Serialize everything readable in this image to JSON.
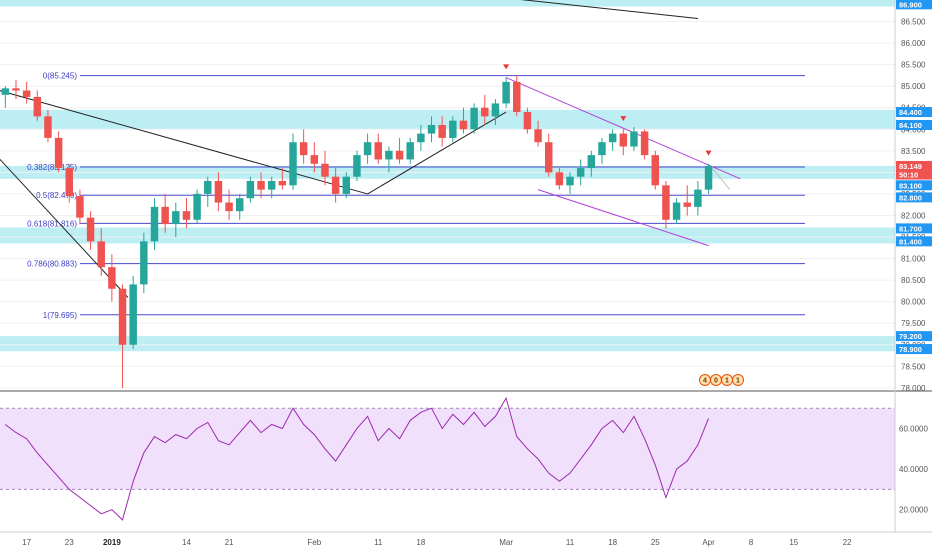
{
  "chart_data": {
    "type": "candlestick",
    "title": "",
    "price_axis": {
      "ticks": [
        "86.500",
        "86.000",
        "85.500",
        "85.000",
        "84.500",
        "84.000",
        "83.500",
        "83.000",
        "82.500",
        "82.000",
        "81.500",
        "81.000",
        "80.500",
        "80.000",
        "79.500",
        "79.000",
        "78.500",
        "78.000"
      ],
      "tick_values": [
        86.5,
        86.0,
        85.5,
        85.0,
        84.5,
        84.0,
        83.5,
        83.0,
        82.5,
        82.0,
        81.5,
        81.0,
        80.5,
        80.0,
        79.5,
        79.0,
        78.5,
        78.0
      ],
      "range": [
        77.95,
        87.0
      ],
      "tags": [
        {
          "label": "86.900",
          "value": 86.9,
          "color": "#2196f3"
        },
        {
          "label": "84.400",
          "value": 84.4,
          "color": "#2196f3"
        },
        {
          "label": "84.100",
          "value": 84.1,
          "color": "#2196f3"
        },
        {
          "label": "83.149",
          "value": 83.149,
          "color": "#ef5350"
        },
        {
          "label": "50:10",
          "value": 82.95,
          "color": "#ef5350"
        },
        {
          "label": "83.100",
          "value": 82.7,
          "color": "#2196f3"
        },
        {
          "label": "82.800",
          "value": 82.42,
          "color": "#2196f3"
        },
        {
          "label": "81.700",
          "value": 81.7,
          "color": "#2196f3"
        },
        {
          "label": "81.400",
          "value": 81.4,
          "color": "#2196f3"
        },
        {
          "label": "79.200",
          "value": 79.2,
          "color": "#2196f3"
        },
        {
          "label": "78.900",
          "value": 78.9,
          "color": "#2196f3"
        }
      ]
    },
    "rsi_axis": {
      "ticks": [
        "60.0000",
        "40.0000",
        "20.0000"
      ],
      "tick_values": [
        60,
        40,
        20
      ],
      "range": [
        10,
        78
      ],
      "band": [
        30,
        70
      ]
    },
    "x_axis": {
      "labels": [
        {
          "text": "17",
          "index": 2,
          "bold": false
        },
        {
          "text": "23",
          "index": 6,
          "bold": false
        },
        {
          "text": "2019",
          "index": 10,
          "bold": true
        },
        {
          "text": "14",
          "index": 17,
          "bold": false
        },
        {
          "text": "21",
          "index": 21,
          "bold": false
        },
        {
          "text": "Feb",
          "index": 29,
          "bold": false
        },
        {
          "text": "11",
          "index": 35,
          "bold": false
        },
        {
          "text": "18",
          "index": 39,
          "bold": false
        },
        {
          "text": "Mar",
          "index": 47,
          "bold": false
        },
        {
          "text": "11",
          "index": 53,
          "bold": false
        },
        {
          "text": "18",
          "index": 57,
          "bold": false
        },
        {
          "text": "25",
          "index": 61,
          "bold": false
        },
        {
          "text": "Apr",
          "index": 66,
          "bold": false
        },
        {
          "text": "8",
          "index": 70,
          "bold": false
        },
        {
          "text": "15",
          "index": 74,
          "bold": false
        },
        {
          "text": "22",
          "index": 79,
          "bold": false
        }
      ],
      "bar_count": 84
    },
    "resistance_zones": [
      {
        "from": 86.85,
        "to": 87.0
      },
      {
        "from": 84.0,
        "to": 84.45
      },
      {
        "from": 82.85,
        "to": 83.15
      },
      {
        "from": 81.35,
        "to": 81.72
      },
      {
        "from": 78.85,
        "to": 79.2
      }
    ],
    "fibonacci": [
      {
        "label": "0(85.245)",
        "value": 85.245
      },
      {
        "label": "0.382(83.125)",
        "value": 83.125
      },
      {
        "label": "0.5(82.470)",
        "value": 82.47
      },
      {
        "label": "0.618(81.816)",
        "value": 81.816
      },
      {
        "label": "0.786(80.883)",
        "value": 80.883
      },
      {
        "label": "1(79.695)",
        "value": 79.695
      }
    ],
    "candles": [
      {
        "o": 84.8,
        "h": 85.0,
        "l": 84.5,
        "c": 84.95
      },
      {
        "o": 84.95,
        "h": 85.15,
        "l": 84.7,
        "c": 84.9
      },
      {
        "o": 84.9,
        "h": 85.1,
        "l": 84.6,
        "c": 84.75
      },
      {
        "o": 84.75,
        "h": 84.9,
        "l": 84.2,
        "c": 84.3
      },
      {
        "o": 84.3,
        "h": 84.45,
        "l": 83.7,
        "c": 83.8
      },
      {
        "o": 83.8,
        "h": 83.95,
        "l": 83.0,
        "c": 83.1
      },
      {
        "o": 83.1,
        "h": 83.2,
        "l": 82.3,
        "c": 82.45
      },
      {
        "o": 82.45,
        "h": 82.6,
        "l": 81.8,
        "c": 81.95
      },
      {
        "o": 81.95,
        "h": 82.1,
        "l": 81.2,
        "c": 81.4
      },
      {
        "o": 81.4,
        "h": 81.7,
        "l": 80.6,
        "c": 80.8
      },
      {
        "o": 80.8,
        "h": 81.1,
        "l": 80.0,
        "c": 80.3
      },
      {
        "o": 80.3,
        "h": 80.4,
        "l": 78.0,
        "c": 79.0
      },
      {
        "o": 79.0,
        "h": 80.6,
        "l": 78.9,
        "c": 80.4
      },
      {
        "o": 80.4,
        "h": 81.6,
        "l": 80.2,
        "c": 81.4
      },
      {
        "o": 81.4,
        "h": 82.4,
        "l": 81.2,
        "c": 82.2
      },
      {
        "o": 82.2,
        "h": 82.5,
        "l": 81.6,
        "c": 81.8
      },
      {
        "o": 81.8,
        "h": 82.3,
        "l": 81.5,
        "c": 82.1
      },
      {
        "o": 82.1,
        "h": 82.4,
        "l": 81.7,
        "c": 81.9
      },
      {
        "o": 81.9,
        "h": 82.6,
        "l": 81.8,
        "c": 82.5
      },
      {
        "o": 82.5,
        "h": 82.9,
        "l": 82.2,
        "c": 82.8
      },
      {
        "o": 82.8,
        "h": 83.0,
        "l": 82.1,
        "c": 82.3
      },
      {
        "o": 82.3,
        "h": 82.6,
        "l": 81.9,
        "c": 82.1
      },
      {
        "o": 82.1,
        "h": 82.5,
        "l": 81.9,
        "c": 82.4
      },
      {
        "o": 82.4,
        "h": 82.9,
        "l": 82.3,
        "c": 82.8
      },
      {
        "o": 82.8,
        "h": 83.0,
        "l": 82.4,
        "c": 82.6
      },
      {
        "o": 82.6,
        "h": 82.9,
        "l": 82.4,
        "c": 82.8
      },
      {
        "o": 82.8,
        "h": 83.1,
        "l": 82.6,
        "c": 82.7
      },
      {
        "o": 82.7,
        "h": 83.9,
        "l": 82.6,
        "c": 83.7
      },
      {
        "o": 83.7,
        "h": 84.0,
        "l": 83.2,
        "c": 83.4
      },
      {
        "o": 83.4,
        "h": 83.7,
        "l": 83.0,
        "c": 83.2
      },
      {
        "o": 83.2,
        "h": 83.5,
        "l": 82.7,
        "c": 82.9
      },
      {
        "o": 82.9,
        "h": 83.1,
        "l": 82.3,
        "c": 82.5
      },
      {
        "o": 82.5,
        "h": 83.0,
        "l": 82.4,
        "c": 82.9
      },
      {
        "o": 82.9,
        "h": 83.5,
        "l": 82.8,
        "c": 83.4
      },
      {
        "o": 83.4,
        "h": 83.9,
        "l": 83.2,
        "c": 83.7
      },
      {
        "o": 83.7,
        "h": 83.9,
        "l": 83.2,
        "c": 83.3
      },
      {
        "o": 83.3,
        "h": 83.6,
        "l": 83.0,
        "c": 83.5
      },
      {
        "o": 83.5,
        "h": 83.8,
        "l": 83.2,
        "c": 83.3
      },
      {
        "o": 83.3,
        "h": 83.8,
        "l": 83.2,
        "c": 83.7
      },
      {
        "o": 83.7,
        "h": 84.1,
        "l": 83.5,
        "c": 83.9
      },
      {
        "o": 83.9,
        "h": 84.3,
        "l": 83.7,
        "c": 84.1
      },
      {
        "o": 84.1,
        "h": 84.3,
        "l": 83.6,
        "c": 83.8
      },
      {
        "o": 83.8,
        "h": 84.3,
        "l": 83.7,
        "c": 84.2
      },
      {
        "o": 84.2,
        "h": 84.5,
        "l": 83.9,
        "c": 84.0
      },
      {
        "o": 84.0,
        "h": 84.6,
        "l": 83.9,
        "c": 84.5
      },
      {
        "o": 84.5,
        "h": 84.8,
        "l": 84.1,
        "c": 84.3
      },
      {
        "o": 84.3,
        "h": 84.7,
        "l": 84.1,
        "c": 84.6
      },
      {
        "o": 84.6,
        "h": 85.2,
        "l": 84.5,
        "c": 85.1
      },
      {
        "o": 85.1,
        "h": 85.25,
        "l": 84.3,
        "c": 84.4
      },
      {
        "o": 84.4,
        "h": 84.5,
        "l": 83.9,
        "c": 84.0
      },
      {
        "o": 84.0,
        "h": 84.2,
        "l": 83.6,
        "c": 83.7
      },
      {
        "o": 83.7,
        "h": 83.9,
        "l": 82.9,
        "c": 83.0
      },
      {
        "o": 83.0,
        "h": 83.1,
        "l": 82.6,
        "c": 82.7
      },
      {
        "o": 82.7,
        "h": 83.0,
        "l": 82.5,
        "c": 82.9
      },
      {
        "o": 82.9,
        "h": 83.3,
        "l": 82.7,
        "c": 83.1
      },
      {
        "o": 83.1,
        "h": 83.5,
        "l": 82.9,
        "c": 83.4
      },
      {
        "o": 83.4,
        "h": 83.8,
        "l": 83.2,
        "c": 83.7
      },
      {
        "o": 83.7,
        "h": 84.0,
        "l": 83.5,
        "c": 83.9
      },
      {
        "o": 83.9,
        "h": 84.0,
        "l": 83.4,
        "c": 83.6
      },
      {
        "o": 83.6,
        "h": 84.05,
        "l": 83.5,
        "c": 83.95
      },
      {
        "o": 83.95,
        "h": 84.0,
        "l": 83.3,
        "c": 83.4
      },
      {
        "o": 83.4,
        "h": 83.5,
        "l": 82.6,
        "c": 82.7
      },
      {
        "o": 82.7,
        "h": 82.8,
        "l": 81.7,
        "c": 81.9
      },
      {
        "o": 81.9,
        "h": 82.4,
        "l": 81.8,
        "c": 82.3
      },
      {
        "o": 82.3,
        "h": 82.7,
        "l": 82.0,
        "c": 82.2
      },
      {
        "o": 82.2,
        "h": 82.8,
        "l": 82.0,
        "c": 82.6
      },
      {
        "o": 82.6,
        "h": 83.2,
        "l": 82.5,
        "c": 83.15
      }
    ],
    "rsi": [
      62,
      58,
      55,
      48,
      42,
      36,
      30,
      26,
      22,
      18,
      20,
      15,
      34,
      48,
      56,
      53,
      57,
      55,
      60,
      63,
      54,
      52,
      58,
      64,
      58,
      62,
      60,
      70,
      62,
      57,
      50,
      44,
      52,
      60,
      66,
      54,
      60,
      55,
      64,
      68,
      70,
      60,
      67,
      62,
      68,
      61,
      66,
      75,
      56,
      50,
      45,
      38,
      34,
      38,
      45,
      52,
      60,
      64,
      58,
      66,
      55,
      42,
      26,
      40,
      44,
      52,
      65
    ],
    "annotations": {
      "badge_text": "4 0 1 1"
    }
  }
}
